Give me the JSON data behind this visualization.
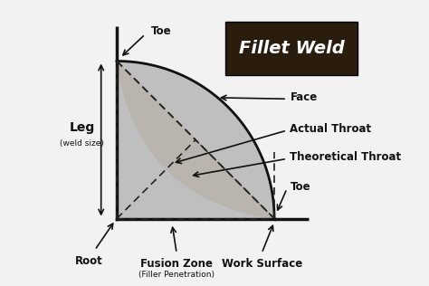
{
  "bg_color": "#f2f2f2",
  "title_box_color": "#2b1d0e",
  "title_text": "Fillet Weld",
  "title_text_color": "#ffffff",
  "weld_gray_color": "#b8b8b8",
  "weld_tan_color": "#c8956a",
  "line_color": "#111111",
  "dashed_color": "#222222",
  "label_color": "#111111",
  "leg_label": "Leg",
  "leg_sub": "(weld size)",
  "root_label": "Root",
  "toe_top_label": "Toe",
  "toe_right_label": "Toe",
  "face_label": "Face",
  "actual_throat_label": "Actual Throat",
  "theoretical_throat_label": "Theoretical Throat",
  "fusion_zone_label": "Fusion Zone",
  "fusion_zone_sub": "(Filler Penetration)",
  "work_surface_label": "Work Surface",
  "label_fontsize": 8.5,
  "sub_fontsize": 6.5,
  "leg_fontsize": 10,
  "title_fontsize": 14
}
